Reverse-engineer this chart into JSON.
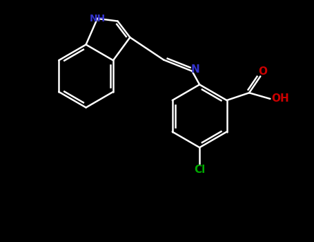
{
  "background_color": "#000000",
  "bond_color": "#ffffff",
  "atom_colors": {
    "N": "#3333cc",
    "NH": "#3333cc",
    "O_red": "#cc0000",
    "O_black": "#cc0000",
    "OH": "#cc0000",
    "Cl": "#00aa00"
  },
  "figsize": [
    4.55,
    3.5
  ],
  "dpi": 100
}
